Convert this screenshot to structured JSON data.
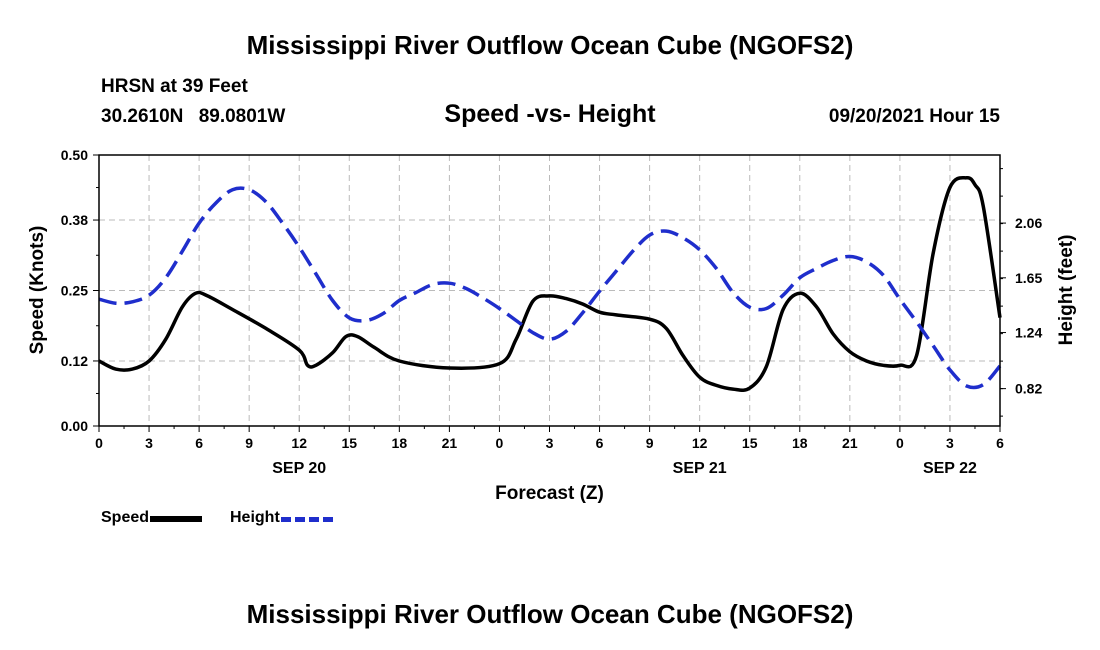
{
  "header": {
    "title": "Mississippi River Outflow Ocean Cube (NGOFS2)",
    "station": "HRSN at 39 Feet",
    "lat": "30.2610N",
    "lon": "89.0801W",
    "subtitle": "Speed -vs- Height",
    "datetime": "09/20/2021 Hour 15"
  },
  "footer": {
    "title": "Mississippi River Outflow Ocean Cube (NGOFS2)"
  },
  "legend": {
    "speed_label": "Speed",
    "height_label": "Height"
  },
  "colors": {
    "speed": "#000000",
    "height": "#1f2ecc",
    "grid": "#bbbbbb"
  },
  "chart_data": {
    "type": "line",
    "title": "Speed -vs- Height",
    "xlabel": "Forecast (Z)",
    "ylabel": "Speed (Knots)",
    "y2label": "Height (feet)",
    "x_hours_range": [
      0,
      54
    ],
    "x_tick_hours": [
      0,
      3,
      6,
      9,
      12,
      15,
      18,
      21,
      24,
      27,
      30,
      33,
      36,
      39,
      42,
      45,
      48,
      51,
      54
    ],
    "x_tick_labels": [
      "0",
      "3",
      "6",
      "9",
      "12",
      "15",
      "18",
      "21",
      "0",
      "3",
      "6",
      "9",
      "12",
      "15",
      "18",
      "21",
      "0",
      "3",
      "6"
    ],
    "day_labels": [
      {
        "hour": 12,
        "label": "SEP 20"
      },
      {
        "hour": 36,
        "label": "SEP 21"
      },
      {
        "hour": 51,
        "label": "SEP 22"
      }
    ],
    "ylim": [
      0.0,
      0.5
    ],
    "y_ticks": [
      0.0,
      0.12,
      0.25,
      0.38,
      0.5
    ],
    "y_tick_labels": [
      "0.00",
      "0.12",
      "0.25",
      "0.38",
      "0.50"
    ],
    "y2lim": [
      0.54,
      2.57
    ],
    "y2_ticks": [
      0.82,
      1.24,
      1.65,
      2.06
    ],
    "y2_tick_labels": [
      "0.82",
      "1.24",
      "1.65",
      "2.06"
    ],
    "series": [
      {
        "name": "Speed",
        "axis": "left",
        "style": "solid",
        "x": [
          0,
          1,
          2,
          3,
          4,
          5,
          5.8,
          6.5,
          8,
          10,
          12,
          12.5,
          13,
          14,
          14.8,
          15.5,
          16.5,
          18,
          21,
          24,
          25,
          26,
          27,
          28,
          29,
          30,
          31,
          33,
          34,
          35,
          36,
          37,
          38,
          39,
          40,
          41,
          42,
          43,
          44,
          45,
          46,
          47,
          48,
          49,
          50,
          51,
          52,
          52.5,
          53,
          54
        ],
        "values": [
          0.12,
          0.105,
          0.105,
          0.12,
          0.16,
          0.22,
          0.245,
          0.24,
          0.215,
          0.18,
          0.14,
          0.112,
          0.112,
          0.135,
          0.165,
          0.165,
          0.145,
          0.12,
          0.107,
          0.115,
          0.16,
          0.23,
          0.24,
          0.235,
          0.225,
          0.21,
          0.205,
          0.197,
          0.18,
          0.13,
          0.09,
          0.075,
          0.068,
          0.07,
          0.11,
          0.215,
          0.245,
          0.22,
          0.17,
          0.137,
          0.12,
          0.112,
          0.112,
          0.13,
          0.32,
          0.44,
          0.458,
          0.445,
          0.405,
          0.2
        ]
      },
      {
        "name": "Height",
        "axis": "right",
        "style": "dashed",
        "x": [
          0,
          1,
          2,
          3,
          4,
          5,
          6,
          7,
          8,
          9,
          10,
          11,
          12,
          13,
          14,
          15,
          16,
          17,
          18,
          19,
          20,
          21,
          22,
          23,
          24,
          25,
          26,
          27,
          28,
          29,
          30,
          31,
          32,
          33,
          34,
          35,
          36,
          37,
          38,
          39,
          40,
          41,
          42,
          43,
          44,
          45,
          46,
          47,
          48,
          49,
          50,
          51,
          52,
          53,
          54
        ],
        "values": [
          1.49,
          1.46,
          1.47,
          1.52,
          1.65,
          1.85,
          2.06,
          2.21,
          2.31,
          2.31,
          2.22,
          2.06,
          1.88,
          1.68,
          1.48,
          1.35,
          1.33,
          1.38,
          1.48,
          1.54,
          1.6,
          1.61,
          1.57,
          1.5,
          1.42,
          1.33,
          1.24,
          1.19,
          1.25,
          1.39,
          1.55,
          1.7,
          1.85,
          1.97,
          2.0,
          1.95,
          1.86,
          1.72,
          1.54,
          1.43,
          1.42,
          1.52,
          1.65,
          1.72,
          1.78,
          1.81,
          1.77,
          1.67,
          1.49,
          1.32,
          1.14,
          0.96,
          0.84,
          0.85,
          0.99
        ]
      }
    ]
  }
}
